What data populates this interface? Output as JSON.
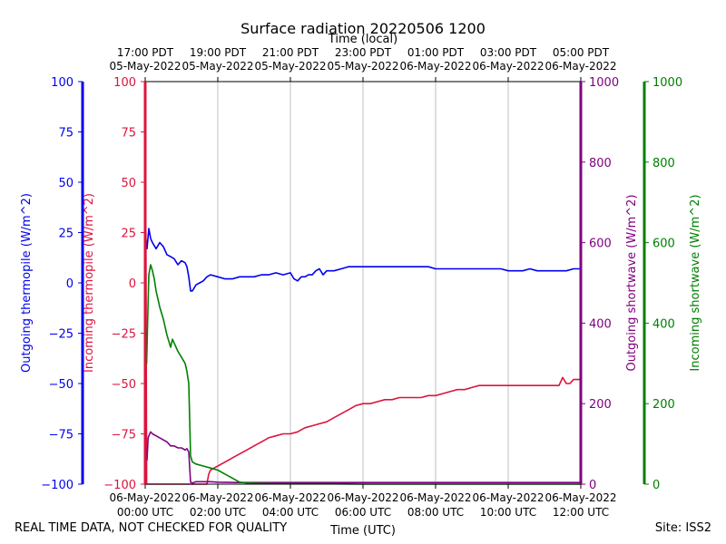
{
  "chart_data": {
    "type": "line",
    "title": "Surface radiation 20220506 1200",
    "top_axis_label": "Time (local)",
    "xlabel": "Time (UTC)",
    "x_ticks_utc": [
      {
        "t": 0,
        "date": "06-May-2022",
        "time": "00:00 UTC"
      },
      {
        "t": 2,
        "date": "06-May-2022",
        "time": "02:00 UTC"
      },
      {
        "t": 4,
        "date": "06-May-2022",
        "time": "04:00 UTC"
      },
      {
        "t": 6,
        "date": "06-May-2022",
        "time": "06:00 UTC"
      },
      {
        "t": 8,
        "date": "06-May-2022",
        "time": "08:00 UTC"
      },
      {
        "t": 10,
        "date": "06-May-2022",
        "time": "10:00 UTC"
      },
      {
        "t": 12,
        "date": "06-May-2022",
        "time": "12:00 UTC"
      }
    ],
    "x_ticks_local": [
      {
        "t": 0,
        "time": "17:00 PDT",
        "date": "05-May-2022"
      },
      {
        "t": 2,
        "time": "19:00 PDT",
        "date": "05-May-2022"
      },
      {
        "t": 4,
        "time": "21:00 PDT",
        "date": "05-May-2022"
      },
      {
        "t": 6,
        "time": "23:00 PDT",
        "date": "05-May-2022"
      },
      {
        "t": 8,
        "time": "01:00 PDT",
        "date": "06-May-2022"
      },
      {
        "t": 10,
        "time": "03:00 PDT",
        "date": "06-May-2022"
      },
      {
        "t": 12,
        "time": "05:00 PDT",
        "date": "06-May-2022"
      }
    ],
    "xlim": [
      0,
      12
    ],
    "grid": "vertical",
    "axes": [
      {
        "key": "outgoing_thermopile",
        "label": "Outgoing thermopile (W/m^2)",
        "color": "#0000ee",
        "ylim": [
          -100,
          100
        ],
        "ticks": [
          -100,
          -75,
          -50,
          -25,
          0,
          25,
          50,
          75,
          100
        ]
      },
      {
        "key": "incoming_thermopile",
        "label": "Incoming thermopile (W/m^2)",
        "color": "#dc143c",
        "ylim": [
          -100,
          100
        ],
        "ticks": [
          -100,
          -75,
          -50,
          -25,
          0,
          25,
          50,
          75,
          100
        ]
      },
      {
        "key": "outgoing_shortwave",
        "label": "Outgoing shortwave (W/m^2)",
        "color": "#800080",
        "ylim": [
          0,
          1000
        ],
        "ticks": [
          0,
          200,
          400,
          600,
          800,
          1000
        ]
      },
      {
        "key": "incoming_shortwave",
        "label": "Incoming shortwave (W/m^2)",
        "color": "#008000",
        "ylim": [
          0,
          1000
        ],
        "ticks": [
          0,
          200,
          400,
          600,
          800,
          1000
        ]
      }
    ],
    "series": [
      {
        "axis": "outgoing_thermopile",
        "color": "#0000ee",
        "x": [
          0,
          0.05,
          0.1,
          0.15,
          0.2,
          0.3,
          0.4,
          0.5,
          0.6,
          0.7,
          0.8,
          0.9,
          1.0,
          1.1,
          1.15,
          1.2,
          1.25,
          1.3,
          1.4,
          1.5,
          1.6,
          1.7,
          1.8,
          2.0,
          2.2,
          2.4,
          2.6,
          2.8,
          3.0,
          3.2,
          3.4,
          3.6,
          3.8,
          4.0,
          4.1,
          4.2,
          4.3,
          4.4,
          4.5,
          4.6,
          4.7,
          4.8,
          4.9,
          5.0,
          5.2,
          5.4,
          5.6,
          5.8,
          6.0,
          6.2,
          6.4,
          6.6,
          6.8,
          7.0,
          7.2,
          7.4,
          7.6,
          7.8,
          8.0,
          8.2,
          8.4,
          8.6,
          8.8,
          9.0,
          9.2,
          9.4,
          9.6,
          9.8,
          10.0,
          10.2,
          10.4,
          10.6,
          10.8,
          11.0,
          11.2,
          11.4,
          11.6,
          11.8,
          12.0
        ],
        "y": [
          25,
          17,
          27,
          22,
          20,
          17,
          20,
          18,
          14,
          13,
          12,
          9,
          11,
          10,
          8,
          3,
          -4,
          -4,
          -1,
          0,
          1,
          3,
          4,
          3,
          2,
          2,
          3,
          3,
          3,
          4,
          4,
          5,
          4,
          5,
          2,
          1,
          3,
          3,
          4,
          4,
          6,
          7,
          4,
          6,
          6,
          7,
          8,
          8,
          8,
          8,
          8,
          8,
          8,
          8,
          8,
          8,
          8,
          8,
          7,
          7,
          7,
          7,
          7,
          7,
          7,
          7,
          7,
          7,
          6,
          6,
          6,
          7,
          6,
          6,
          6,
          6,
          6,
          7,
          7
        ]
      },
      {
        "axis": "incoming_thermopile",
        "color": "#dc143c",
        "x": [
          0,
          0.02,
          0.04,
          0.06,
          1.7,
          1.75,
          1.8,
          1.9,
          2.0,
          2.2,
          2.4,
          2.6,
          2.8,
          3.0,
          3.2,
          3.4,
          3.6,
          3.8,
          4.0,
          4.2,
          4.4,
          4.6,
          4.8,
          5.0,
          5.2,
          5.4,
          5.6,
          5.8,
          6.0,
          6.2,
          6.4,
          6.6,
          6.8,
          7.0,
          7.2,
          7.4,
          7.6,
          7.8,
          8.0,
          8.2,
          8.4,
          8.6,
          8.8,
          9.0,
          9.2,
          9.4,
          9.6,
          9.8,
          10.0,
          10.2,
          10.4,
          10.6,
          10.8,
          11.0,
          11.2,
          11.4,
          11.5,
          11.6,
          11.7,
          11.8,
          12.0
        ],
        "y": [
          -100,
          25,
          -100,
          -100,
          -100,
          -95,
          -93,
          -92,
          -91,
          -89,
          -87,
          -85,
          -83,
          -81,
          -79,
          -77,
          -76,
          -75,
          -75,
          -74,
          -72,
          -71,
          -70,
          -69,
          -67,
          -65,
          -63,
          -61,
          -60,
          -60,
          -59,
          -58,
          -58,
          -57,
          -57,
          -57,
          -57,
          -56,
          -56,
          -55,
          -54,
          -53,
          -53,
          -52,
          -51,
          -51,
          -51,
          -51,
          -51,
          -51,
          -51,
          -51,
          -51,
          -51,
          -51,
          -51,
          -47,
          -50,
          -50,
          -48,
          -48
        ]
      },
      {
        "axis": "outgoing_shortwave",
        "color": "#800080",
        "x": [
          0,
          0.02,
          0.05,
          0.08,
          0.1,
          0.15,
          0.2,
          0.3,
          0.4,
          0.5,
          0.6,
          0.7,
          0.8,
          0.9,
          1.0,
          1.1,
          1.15,
          1.2,
          1.25,
          1.3,
          1.4,
          1.6,
          1.8,
          2.0,
          2.5,
          3.0,
          3.5,
          4.0,
          5.0,
          6.0,
          7.0,
          8.0,
          9.0,
          10.0,
          11.0,
          12.0
        ],
        "y": [
          95,
          90,
          60,
          115,
          120,
          130,
          125,
          120,
          115,
          110,
          105,
          95,
          95,
          90,
          90,
          85,
          88,
          80,
          5,
          3,
          6,
          6,
          6,
          5,
          4,
          4,
          4,
          4,
          4,
          4,
          4,
          4,
          4,
          4,
          4,
          4
        ]
      },
      {
        "axis": "incoming_shortwave",
        "color": "#008000",
        "x": [
          0,
          0.02,
          0.04,
          0.06,
          0.1,
          0.15,
          0.2,
          0.25,
          0.3,
          0.35,
          0.4,
          0.5,
          0.6,
          0.7,
          0.75,
          0.8,
          0.85,
          0.9,
          1.0,
          1.1,
          1.15,
          1.2,
          1.25,
          1.3,
          1.4,
          1.6,
          1.8,
          2.0,
          2.2,
          2.4,
          2.6,
          2.8,
          3.0,
          3.5,
          4.0,
          5.0,
          6.0,
          7.0,
          8.0,
          9.0,
          10.0,
          11.0,
          12.0
        ],
        "y": [
          310,
          390,
          300,
          380,
          520,
          545,
          530,
          510,
          480,
          460,
          440,
          410,
          370,
          340,
          360,
          350,
          340,
          330,
          315,
          300,
          280,
          250,
          70,
          55,
          50,
          45,
          40,
          35,
          25,
          15,
          5,
          3,
          2,
          1,
          1,
          1,
          0,
          0,
          0,
          0,
          0,
          0,
          0
        ]
      }
    ]
  },
  "footer": {
    "left": "REAL TIME DATA, NOT CHECKED FOR QUALITY",
    "right": "Site: ISS2"
  }
}
